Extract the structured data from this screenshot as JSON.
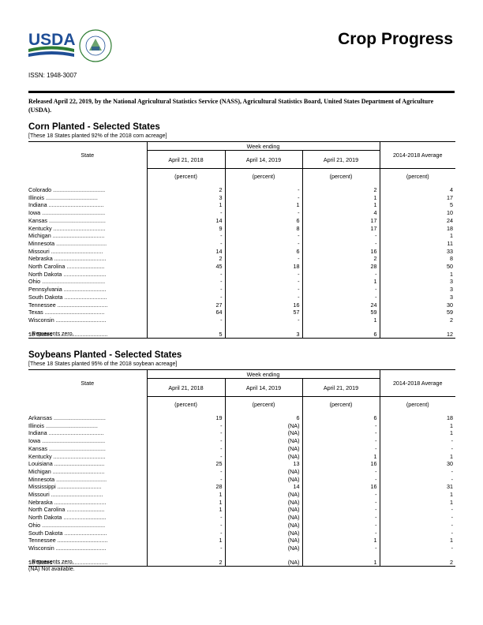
{
  "header": {
    "usda_logo_text": "USDA",
    "seal_text": "AGRICULTURE COUNTS",
    "title": "Crop Progress",
    "issn": "ISSN: 1948-3007",
    "release": "Released April 22, 2019, by the National Agricultural Statistics Service (NASS), Agricultural Statistics Board, United States Department of Agriculture (USDA)."
  },
  "corn": {
    "title": "Corn Planted - Selected States",
    "note": "[These 18 States planted 92% of the 2018 corn acreage]",
    "state_header": "State",
    "week_ending": "Week ending",
    "cols": [
      "April 21, 2018",
      "April 14, 2019",
      "April 21, 2019"
    ],
    "avg_header": "2014-2018 Average",
    "unit": "(percent)",
    "rows": [
      {
        "state": "Colorado",
        "a": "2",
        "b": "-",
        "c": "2",
        "d": "4"
      },
      {
        "state": "Illinois",
        "a": "3",
        "b": "-",
        "c": "1",
        "d": "17"
      },
      {
        "state": "Indiana",
        "a": "1",
        "b": "1",
        "c": "1",
        "d": "5"
      },
      {
        "state": "Iowa",
        "a": "-",
        "b": "-",
        "c": "4",
        "d": "10"
      },
      {
        "state": "Kansas",
        "a": "14",
        "b": "6",
        "c": "17",
        "d": "24"
      },
      {
        "state": "Kentucky",
        "a": "9",
        "b": "8",
        "c": "17",
        "d": "18"
      },
      {
        "state": "Michigan",
        "a": "-",
        "b": "-",
        "c": "-",
        "d": "1"
      },
      {
        "state": "Minnesota",
        "a": "-",
        "b": "-",
        "c": "-",
        "d": "11"
      },
      {
        "state": "Missouri",
        "a": "14",
        "b": "6",
        "c": "16",
        "d": "33"
      },
      {
        "state": "Nebraska",
        "a": "2",
        "b": "-",
        "c": "2",
        "d": "8"
      },
      {
        "state": "North Carolina",
        "a": "45",
        "b": "18",
        "c": "28",
        "d": "50"
      },
      {
        "state": "North Dakota",
        "a": "-",
        "b": "-",
        "c": "-",
        "d": "1"
      },
      {
        "state": "Ohio",
        "a": "-",
        "b": "-",
        "c": "1",
        "d": "3"
      },
      {
        "state": "Pennsylvania",
        "a": "-",
        "b": "-",
        "c": "-",
        "d": "3"
      },
      {
        "state": "South Dakota",
        "a": "-",
        "b": "-",
        "c": "-",
        "d": "3"
      },
      {
        "state": "Tennessee",
        "a": "27",
        "b": "16",
        "c": "24",
        "d": "30"
      },
      {
        "state": "Texas",
        "a": "64",
        "b": "57",
        "c": "59",
        "d": "59"
      },
      {
        "state": "Wisconsin",
        "a": "-",
        "b": "-",
        "c": "1",
        "d": "2"
      }
    ],
    "total": {
      "state": "18 States",
      "a": "5",
      "b": "3",
      "c": "6",
      "d": "12"
    },
    "footnotes": [
      "- Represents zero."
    ]
  },
  "soy": {
    "title": "Soybeans Planted - Selected States",
    "note": "[These 18 States planted 95% of the 2018 soybean acreage]",
    "state_header": "State",
    "week_ending": "Week ending",
    "cols": [
      "April 21, 2018",
      "April 14, 2019",
      "April 21, 2019"
    ],
    "avg_header": "2014-2018 Average",
    "unit": "(percent)",
    "rows": [
      {
        "state": "Arkansas",
        "a": "19",
        "b": "6",
        "c": "6",
        "d": "18"
      },
      {
        "state": "Illinois",
        "a": "-",
        "b": "(NA)",
        "c": "-",
        "d": "1"
      },
      {
        "state": "Indiana",
        "a": "-",
        "b": "(NA)",
        "c": "-",
        "d": "1"
      },
      {
        "state": "Iowa",
        "a": "-",
        "b": "(NA)",
        "c": "-",
        "d": "-"
      },
      {
        "state": "Kansas",
        "a": "-",
        "b": "(NA)",
        "c": "-",
        "d": "-"
      },
      {
        "state": "Kentucky",
        "a": "-",
        "b": "(NA)",
        "c": "1",
        "d": "1"
      },
      {
        "state": "Louisiana",
        "a": "25",
        "b": "13",
        "c": "16",
        "d": "30"
      },
      {
        "state": "Michigan",
        "a": "-",
        "b": "(NA)",
        "c": "-",
        "d": "-"
      },
      {
        "state": "Minnesota",
        "a": "-",
        "b": "(NA)",
        "c": "-",
        "d": "-"
      },
      {
        "state": "Mississippi",
        "a": "28",
        "b": "14",
        "c": "16",
        "d": "31"
      },
      {
        "state": "Missouri",
        "a": "1",
        "b": "(NA)",
        "c": "-",
        "d": "1"
      },
      {
        "state": "Nebraska",
        "a": "1",
        "b": "(NA)",
        "c": "-",
        "d": "1"
      },
      {
        "state": "North Carolina",
        "a": "1",
        "b": "(NA)",
        "c": "-",
        "d": "-"
      },
      {
        "state": "North Dakota",
        "a": "-",
        "b": "(NA)",
        "c": "-",
        "d": "-"
      },
      {
        "state": "Ohio",
        "a": "-",
        "b": "(NA)",
        "c": "-",
        "d": "-"
      },
      {
        "state": "South Dakota",
        "a": "-",
        "b": "(NA)",
        "c": "-",
        "d": "-"
      },
      {
        "state": "Tennessee",
        "a": "1",
        "b": "(NA)",
        "c": "1",
        "d": "1"
      },
      {
        "state": "Wisconsin",
        "a": "-",
        "b": "(NA)",
        "c": "-",
        "d": "-"
      }
    ],
    "total": {
      "state": "18 States",
      "a": "2",
      "b": "(NA)",
      "c": "1",
      "d": "2"
    },
    "footnotes": [
      "- Represents zero.",
      "(NA) Not available."
    ]
  },
  "colors": {
    "usda_blue": "#1f4e96",
    "usda_green": "#2e7d32",
    "rule": "#000000"
  }
}
